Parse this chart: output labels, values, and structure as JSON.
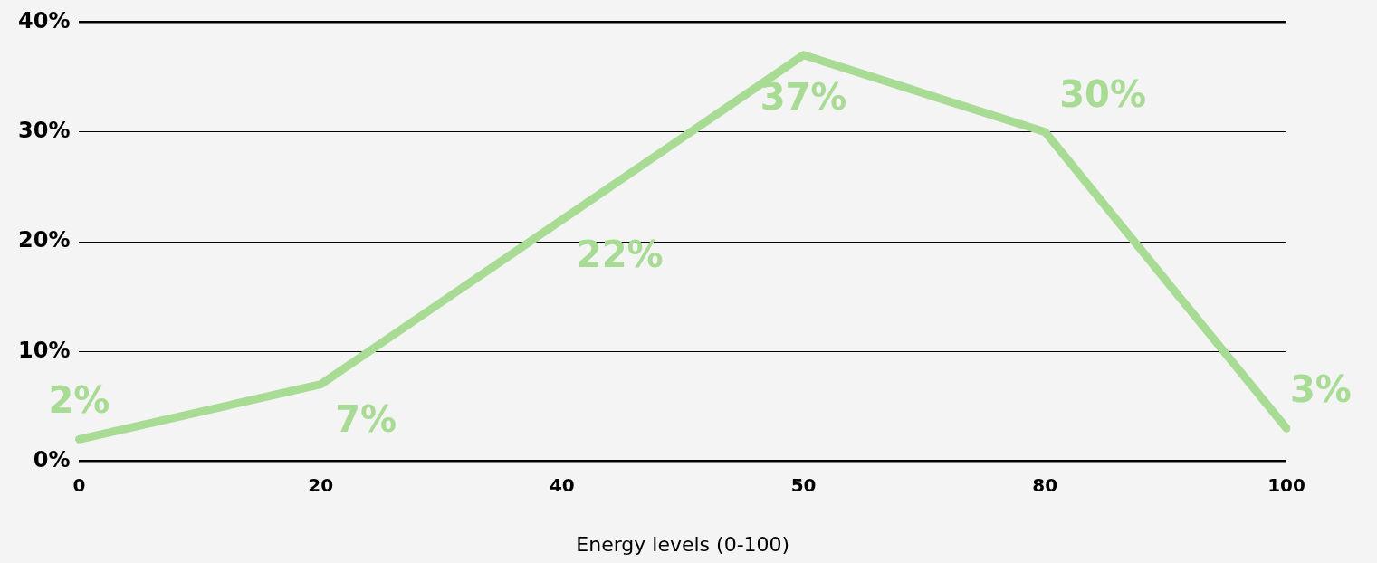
{
  "chart_data": {
    "type": "line",
    "xlabel": "Energy levels (0-100)",
    "categories": [
      "0",
      "20",
      "40",
      "50",
      "80",
      "100"
    ],
    "series": [
      {
        "color": "#a8dc94",
        "values": [
          2,
          7,
          22,
          37,
          30,
          3
        ],
        "value_labels": [
          "2%",
          "7%",
          "22%",
          "37%",
          "30%",
          "3%"
        ]
      }
    ],
    "ylim": [
      0,
      40
    ],
    "yticks": [
      {
        "value": 0,
        "label": "0%"
      },
      {
        "value": 10,
        "label": "10%"
      },
      {
        "value": 20,
        "label": "20%"
      },
      {
        "value": 30,
        "label": "30%"
      },
      {
        "value": 40,
        "label": "40%"
      }
    ],
    "grid": "y",
    "legend": false,
    "marker": "none",
    "line_style": "solid"
  }
}
